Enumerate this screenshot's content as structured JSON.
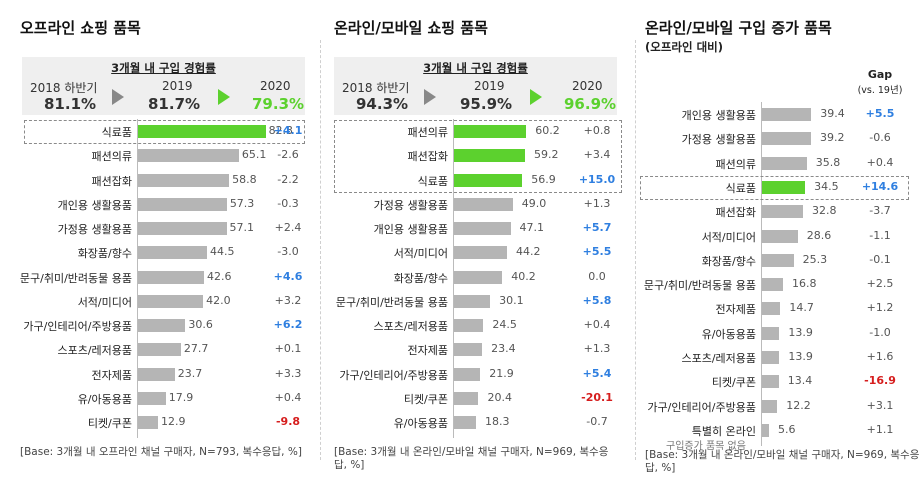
{
  "colors": {
    "green": "#5cd12e",
    "gray": "#b5b5b5",
    "up": "#2f7fe0",
    "down": "#d61d1d"
  },
  "panels": [
    {
      "title": "오프라인 쇼핑 품목",
      "summary": {
        "title": "3개월 내 구입 경험률",
        "periods": [
          {
            "label": "2018 하반기",
            "value": "81.1%"
          },
          {
            "label": "2019",
            "value": "81.7%"
          },
          {
            "label": "2020",
            "value": "79.3%"
          }
        ]
      },
      "note": "[Base: 3개월 내 오프라인 채널 구매자, N=793, 복수응답, %]"
    },
    {
      "title": "온라인/모바일 쇼핑 품목",
      "summary": {
        "title": "3개월 내 구입 경험률",
        "periods": [
          {
            "label": "2018 하반기",
            "value": "94.3%"
          },
          {
            "label": "2019",
            "value": "95.9%"
          },
          {
            "label": "2020",
            "value": "96.9%"
          }
        ]
      },
      "note": "[Base: 3개월 내 온라인/모바일 채널 구매자, N=969, 복수응답, %]"
    },
    {
      "title": "온라인/모바일 구입 증가 품목",
      "subtitle": "(오프라인 대비)",
      "gap_header": "Gap",
      "gap_subheader": "(vs. 19년)",
      "no_product_label": "구입증가 품목 없음",
      "note": "[Base: 3개월 내 온라인/모바일 채널 구매자, N=969, 복수응답, %]"
    }
  ],
  "chart_data": [
    {
      "type": "bar",
      "title": "오프라인 쇼핑 품목",
      "categories": [
        "식료품",
        "패션의류",
        "패션잡화",
        "개인용 생활용품",
        "가정용 생활용품",
        "화장품/향수",
        "문구/취미/반려동물 용품",
        "서적/미디어",
        "가구/인테리어/주방용품",
        "스포츠/레저용품",
        "전자제품",
        "유/아동용품",
        "티켓/쿠폰"
      ],
      "values": [
        82.3,
        65.1,
        58.8,
        57.3,
        57.1,
        44.5,
        42.6,
        42.0,
        30.6,
        27.7,
        23.7,
        17.9,
        12.9
      ],
      "value_labels": [
        "82.3",
        "65.1",
        "58.8",
        "57.3",
        "57.1",
        "44.5",
        "42.6",
        "42.0",
        "30.6",
        "27.7",
        "23.7",
        "17.9",
        "12.9"
      ],
      "gaps": [
        "+4.1",
        "-2.6",
        "-2.2",
        "-0.3",
        "+2.4",
        "-3.0",
        "+4.6",
        "+3.2",
        "+6.2",
        "+0.1",
        "+3.3",
        "+0.4",
        "-9.8"
      ],
      "highlighted": [
        0
      ],
      "xlim": [
        0,
        100
      ]
    },
    {
      "type": "bar",
      "title": "온라인/모바일 쇼핑 품목",
      "categories": [
        "패션의류",
        "패션잡화",
        "식료품",
        "가정용 생활용품",
        "개인용 생활용품",
        "서적/미디어",
        "화장품/향수",
        "문구/취미/반려동물 용품",
        "스포츠/레저용품",
        "전자제품",
        "가구/인테리어/주방용품",
        "티켓/쿠폰",
        "유/아동용품"
      ],
      "values": [
        60.2,
        59.2,
        56.9,
        49.0,
        47.1,
        44.2,
        40.2,
        30.1,
        24.5,
        23.4,
        21.9,
        20.4,
        18.3
      ],
      "value_labels": [
        "60.2",
        "59.2",
        "56.9",
        "49.0",
        "47.1",
        "44.2",
        "40.2",
        "30.1",
        "24.5",
        "23.4",
        "21.9",
        "20.4",
        "18.3"
      ],
      "gaps": [
        "+0.8",
        "+3.4",
        "+15.0",
        "+1.3",
        "+5.7",
        "+5.5",
        "0.0",
        "+5.8",
        "+0.4",
        "+1.3",
        "+5.4",
        "-20.1",
        "-0.7"
      ],
      "highlighted": [
        0,
        1,
        2
      ],
      "xlim": [
        0,
        100
      ]
    },
    {
      "type": "bar",
      "title": "온라인/모바일 구입 증가 품목",
      "categories": [
        "개인용 생활용품",
        "가정용 생활용품",
        "패션의류",
        "식료품",
        "패션잡화",
        "서적/미디어",
        "화장품/향수",
        "문구/취미/반려동물 용품",
        "전자제품",
        "유/아동용품",
        "스포츠/레저용품",
        "티켓/쿠폰",
        "가구/인테리어/주방용품",
        "특별히 온라인"
      ],
      "values": [
        39.4,
        39.2,
        35.8,
        34.5,
        32.8,
        28.6,
        25.3,
        16.8,
        14.7,
        13.9,
        13.9,
        13.4,
        12.2,
        5.6
      ],
      "value_labels": [
        "39.4",
        "39.2",
        "35.8",
        "34.5",
        "32.8",
        "28.6",
        "25.3",
        "16.8",
        "14.7",
        "13.9",
        "13.9",
        "13.4",
        "12.2",
        "5.6"
      ],
      "gaps": [
        "+5.5",
        "-0.6",
        "+0.4",
        "+14.6",
        "-3.7",
        "-1.1",
        "-0.1",
        "+2.5",
        "+1.2",
        "-1.0",
        "+1.6",
        "-16.9",
        "+3.1",
        "+1.1"
      ],
      "highlighted": [
        3
      ],
      "xlim": [
        0,
        100
      ]
    }
  ]
}
